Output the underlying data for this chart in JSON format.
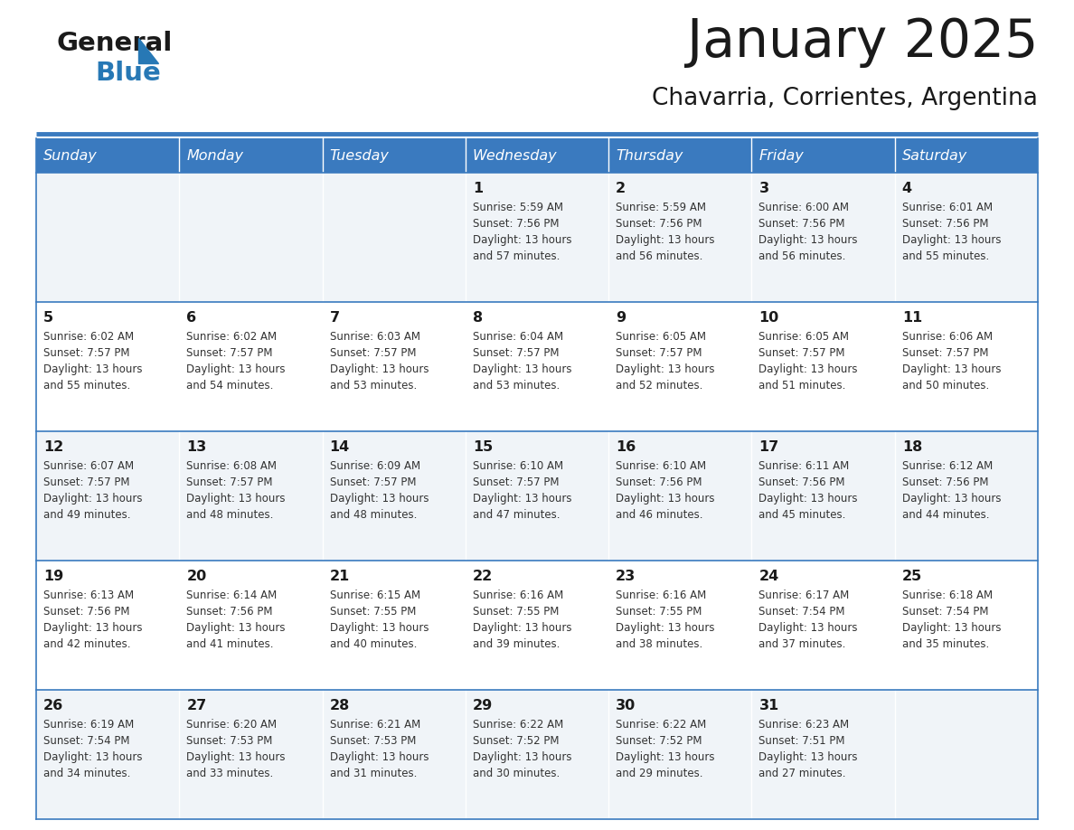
{
  "title": "January 2025",
  "subtitle": "Chavarria, Corrientes, Argentina",
  "days_of_week": [
    "Sunday",
    "Monday",
    "Tuesday",
    "Wednesday",
    "Thursday",
    "Friday",
    "Saturday"
  ],
  "header_bg": "#3a7abf",
  "header_text": "#ffffff",
  "row_bg_odd": "#f0f4f8",
  "row_bg_even": "#ffffff",
  "border_color": "#3a7abf",
  "day_num_color": "#1a1a1a",
  "cell_text_color": "#333333",
  "calendar_data": [
    [
      null,
      null,
      null,
      {
        "day": 1,
        "sunrise": "5:59 AM",
        "sunset": "7:56 PM",
        "daylight": "13 hours and 57 minutes."
      },
      {
        "day": 2,
        "sunrise": "5:59 AM",
        "sunset": "7:56 PM",
        "daylight": "13 hours and 56 minutes."
      },
      {
        "day": 3,
        "sunrise": "6:00 AM",
        "sunset": "7:56 PM",
        "daylight": "13 hours and 56 minutes."
      },
      {
        "day": 4,
        "sunrise": "6:01 AM",
        "sunset": "7:56 PM",
        "daylight": "13 hours and 55 minutes."
      }
    ],
    [
      {
        "day": 5,
        "sunrise": "6:02 AM",
        "sunset": "7:57 PM",
        "daylight": "13 hours and 55 minutes."
      },
      {
        "day": 6,
        "sunrise": "6:02 AM",
        "sunset": "7:57 PM",
        "daylight": "13 hours and 54 minutes."
      },
      {
        "day": 7,
        "sunrise": "6:03 AM",
        "sunset": "7:57 PM",
        "daylight": "13 hours and 53 minutes."
      },
      {
        "day": 8,
        "sunrise": "6:04 AM",
        "sunset": "7:57 PM",
        "daylight": "13 hours and 53 minutes."
      },
      {
        "day": 9,
        "sunrise": "6:05 AM",
        "sunset": "7:57 PM",
        "daylight": "13 hours and 52 minutes."
      },
      {
        "day": 10,
        "sunrise": "6:05 AM",
        "sunset": "7:57 PM",
        "daylight": "13 hours and 51 minutes."
      },
      {
        "day": 11,
        "sunrise": "6:06 AM",
        "sunset": "7:57 PM",
        "daylight": "13 hours and 50 minutes."
      }
    ],
    [
      {
        "day": 12,
        "sunrise": "6:07 AM",
        "sunset": "7:57 PM",
        "daylight": "13 hours and 49 minutes."
      },
      {
        "day": 13,
        "sunrise": "6:08 AM",
        "sunset": "7:57 PM",
        "daylight": "13 hours and 48 minutes."
      },
      {
        "day": 14,
        "sunrise": "6:09 AM",
        "sunset": "7:57 PM",
        "daylight": "13 hours and 48 minutes."
      },
      {
        "day": 15,
        "sunrise": "6:10 AM",
        "sunset": "7:57 PM",
        "daylight": "13 hours and 47 minutes."
      },
      {
        "day": 16,
        "sunrise": "6:10 AM",
        "sunset": "7:56 PM",
        "daylight": "13 hours and 46 minutes."
      },
      {
        "day": 17,
        "sunrise": "6:11 AM",
        "sunset": "7:56 PM",
        "daylight": "13 hours and 45 minutes."
      },
      {
        "day": 18,
        "sunrise": "6:12 AM",
        "sunset": "7:56 PM",
        "daylight": "13 hours and 44 minutes."
      }
    ],
    [
      {
        "day": 19,
        "sunrise": "6:13 AM",
        "sunset": "7:56 PM",
        "daylight": "13 hours and 42 minutes."
      },
      {
        "day": 20,
        "sunrise": "6:14 AM",
        "sunset": "7:56 PM",
        "daylight": "13 hours and 41 minutes."
      },
      {
        "day": 21,
        "sunrise": "6:15 AM",
        "sunset": "7:55 PM",
        "daylight": "13 hours and 40 minutes."
      },
      {
        "day": 22,
        "sunrise": "6:16 AM",
        "sunset": "7:55 PM",
        "daylight": "13 hours and 39 minutes."
      },
      {
        "day": 23,
        "sunrise": "6:16 AM",
        "sunset": "7:55 PM",
        "daylight": "13 hours and 38 minutes."
      },
      {
        "day": 24,
        "sunrise": "6:17 AM",
        "sunset": "7:54 PM",
        "daylight": "13 hours and 37 minutes."
      },
      {
        "day": 25,
        "sunrise": "6:18 AM",
        "sunset": "7:54 PM",
        "daylight": "13 hours and 35 minutes."
      }
    ],
    [
      {
        "day": 26,
        "sunrise": "6:19 AM",
        "sunset": "7:54 PM",
        "daylight": "13 hours and 34 minutes."
      },
      {
        "day": 27,
        "sunrise": "6:20 AM",
        "sunset": "7:53 PM",
        "daylight": "13 hours and 33 minutes."
      },
      {
        "day": 28,
        "sunrise": "6:21 AM",
        "sunset": "7:53 PM",
        "daylight": "13 hours and 31 minutes."
      },
      {
        "day": 29,
        "sunrise": "6:22 AM",
        "sunset": "7:52 PM",
        "daylight": "13 hours and 30 minutes."
      },
      {
        "day": 30,
        "sunrise": "6:22 AM",
        "sunset": "7:52 PM",
        "daylight": "13 hours and 29 minutes."
      },
      {
        "day": 31,
        "sunrise": "6:23 AM",
        "sunset": "7:51 PM",
        "daylight": "13 hours and 27 minutes."
      },
      null
    ]
  ],
  "logo_color1": "#1a1a1a",
  "logo_color2": "#2778b5",
  "logo_triangle_color": "#2778b5",
  "figsize": [
    11.88,
    9.18
  ],
  "dpi": 100
}
